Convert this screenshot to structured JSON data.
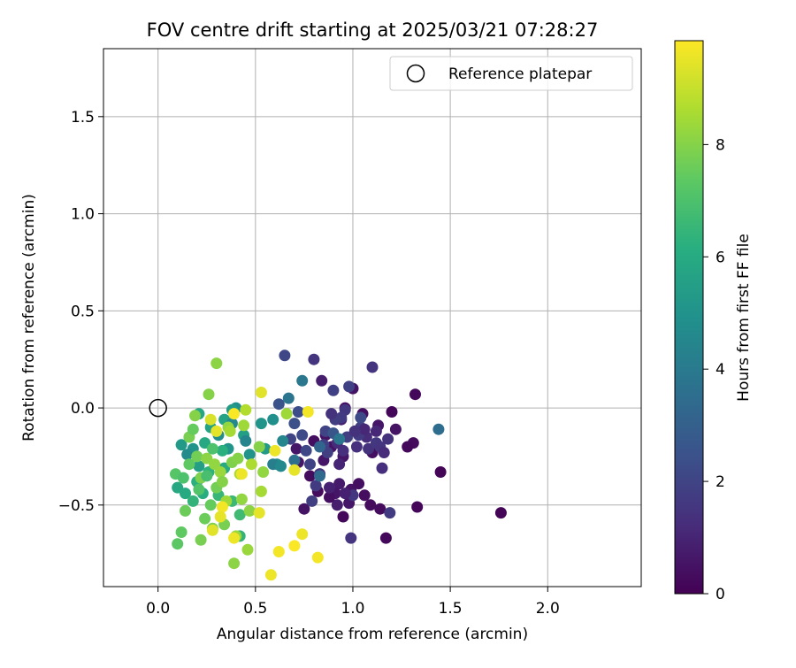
{
  "chart_data": {
    "type": "scatter",
    "title": "FOV centre drift starting at 2025/03/21 07:28:27",
    "xlabel": "Angular distance from reference (arcmin)",
    "ylabel": "Rotation from reference (arcmin)",
    "xlim": [
      -0.28,
      2.48
    ],
    "ylim": [
      -0.92,
      1.85
    ],
    "xticks": [
      "0.0",
      "0.5",
      "1.0",
      "1.5",
      "2.0"
    ],
    "yticks": [
      "−0.5",
      "0.0",
      "0.5",
      "1.0",
      "1.5"
    ],
    "xtick_values": [
      0.0,
      0.5,
      1.0,
      1.5,
      2.0
    ],
    "ytick_values": [
      -0.5,
      0.0,
      0.5,
      1.0,
      1.5
    ],
    "grid": true,
    "legend": {
      "placement": "top-right",
      "entries": [
        {
          "label": "Reference platepar",
          "marker": "open-circle",
          "x": 0.0,
          "y": 0.0
        }
      ]
    },
    "colorbar": {
      "label": "Hours from first FF file",
      "colormap": "viridis",
      "range": [
        0,
        9.85
      ],
      "ticks": [
        "0",
        "2",
        "4",
        "6",
        "8"
      ],
      "tick_values": [
        0,
        2,
        4,
        6,
        8
      ]
    },
    "series": [
      {
        "points": [
          [
            1.76,
            -0.54,
            0.1
          ],
          [
            1.45,
            -0.33,
            0.1
          ],
          [
            1.33,
            -0.51,
            0.15
          ],
          [
            1.32,
            0.07,
            0.2
          ],
          [
            1.31,
            -0.18,
            0.3
          ],
          [
            1.28,
            -0.2,
            0.2
          ],
          [
            1.2,
            -0.02,
            0.15
          ],
          [
            1.17,
            -0.67,
            0.2
          ],
          [
            1.14,
            -0.52,
            0.3
          ],
          [
            1.1,
            -0.23,
            0.4
          ],
          [
            1.09,
            -0.5,
            0.3
          ],
          [
            1.06,
            -0.45,
            0.35
          ],
          [
            1.05,
            -0.03,
            0.4
          ],
          [
            1.0,
            0.1,
            0.5
          ],
          [
            0.99,
            -0.42,
            0.5
          ],
          [
            0.98,
            -0.49,
            0.6
          ],
          [
            0.96,
            0.0,
            0.4
          ],
          [
            0.95,
            -0.25,
            0.6
          ],
          [
            0.94,
            -0.06,
            0.8
          ],
          [
            0.93,
            -0.39,
            0.7
          ],
          [
            0.92,
            -0.5,
            0.8
          ],
          [
            0.91,
            -0.44,
            0.6
          ],
          [
            0.89,
            -0.2,
            0.5
          ],
          [
            0.88,
            -0.46,
            0.4
          ],
          [
            0.86,
            -0.14,
            0.5
          ],
          [
            0.85,
            -0.27,
            0.6
          ],
          [
            0.84,
            0.14,
            0.8
          ],
          [
            0.83,
            -0.34,
            0.5
          ],
          [
            0.82,
            -0.43,
            0.3
          ],
          [
            0.8,
            -0.17,
            0.4
          ],
          [
            0.78,
            -0.35,
            0.3
          ],
          [
            0.75,
            -0.52,
            0.5
          ],
          [
            0.72,
            -0.28,
            0.6
          ],
          [
            0.71,
            -0.21,
            0.6
          ],
          [
            0.95,
            -0.56,
            0.2
          ],
          [
            1.03,
            -0.39,
            0.4
          ],
          [
            1.22,
            -0.11,
            0.5
          ],
          [
            1.13,
            -0.09,
            0.6
          ],
          [
            1.1,
            0.21,
            1.5
          ],
          [
            1.08,
            -0.21,
            1.4
          ],
          [
            1.07,
            -0.15,
            1.2
          ],
          [
            1.04,
            -0.1,
            1.8
          ],
          [
            1.03,
            -0.14,
            1.7
          ],
          [
            1.0,
            -0.45,
            1.6
          ],
          [
            0.99,
            -0.67,
            1.5
          ],
          [
            0.98,
            0.11,
            1.9
          ],
          [
            0.97,
            -0.15,
            1.8
          ],
          [
            0.96,
            -0.01,
            1.6
          ],
          [
            0.95,
            -0.22,
            1.3
          ],
          [
            0.94,
            -0.05,
            1.7
          ],
          [
            0.92,
            -0.18,
            1.2
          ],
          [
            0.91,
            -0.06,
            1.8
          ],
          [
            0.9,
            0.09,
            1.9
          ],
          [
            0.89,
            -0.03,
            1.4
          ],
          [
            0.87,
            -0.23,
            1.8
          ],
          [
            0.86,
            -0.12,
            2.0
          ],
          [
            0.85,
            -0.19,
            1.9
          ],
          [
            0.83,
            -0.34,
            1.5
          ],
          [
            0.81,
            -0.4,
            1.7
          ],
          [
            0.8,
            0.25,
            1.5
          ],
          [
            0.79,
            -0.48,
            1.8
          ],
          [
            0.78,
            -0.29,
            1.9
          ],
          [
            0.76,
            -0.22,
            2.1
          ],
          [
            0.74,
            -0.14,
            2.2
          ],
          [
            0.72,
            -0.02,
            2.3
          ],
          [
            0.7,
            -0.08,
            2.4
          ],
          [
            0.68,
            -0.16,
            2.0
          ],
          [
            0.65,
            0.27,
            2.1
          ],
          [
            0.62,
            0.02,
            2.5
          ],
          [
            1.12,
            -0.18,
            1.6
          ],
          [
            1.14,
            -0.2,
            1.5
          ],
          [
            1.15,
            -0.31,
            1.3
          ],
          [
            1.18,
            -0.16,
            1.4
          ],
          [
            1.19,
            -0.54,
            1.7
          ],
          [
            1.16,
            -0.23,
            1.2
          ],
          [
            1.06,
            -0.11,
            1.1
          ],
          [
            1.02,
            -0.2,
            1.3
          ],
          [
            1.01,
            -0.12,
            1.4
          ],
          [
            0.93,
            -0.29,
            1.0
          ],
          [
            0.88,
            -0.41,
            0.9
          ],
          [
            1.12,
            -0.12,
            1.1
          ],
          [
            0.96,
            -0.44,
            0.9
          ],
          [
            1.04,
            -0.05,
            2.2
          ],
          [
            0.9,
            -0.13,
            2.6
          ],
          [
            1.44,
            -0.11,
            3.5
          ],
          [
            0.93,
            -0.16,
            3.8
          ],
          [
            0.83,
            -0.2,
            3.2
          ],
          [
            0.83,
            -0.35,
            3.4
          ],
          [
            0.74,
            0.14,
            3.9
          ],
          [
            0.7,
            -0.27,
            3.6
          ],
          [
            0.67,
            0.05,
            3.8
          ],
          [
            0.64,
            -0.17,
            4.5
          ],
          [
            0.61,
            -0.29,
            4.8
          ],
          [
            0.59,
            -0.29,
            4.2
          ],
          [
            0.59,
            -0.06,
            4.9
          ],
          [
            0.63,
            -0.3,
            4.6
          ],
          [
            0.55,
            -0.21,
            5.3
          ],
          [
            0.53,
            -0.08,
            5.1
          ],
          [
            0.47,
            -0.24,
            5.0
          ],
          [
            0.44,
            -0.14,
            5.5
          ],
          [
            0.4,
            0.0,
            4.9
          ],
          [
            0.38,
            -0.01,
            5.4
          ],
          [
            0.34,
            -0.06,
            5.7
          ],
          [
            0.31,
            -0.14,
            4.8
          ],
          [
            0.27,
            -0.1,
            5.6
          ],
          [
            0.24,
            -0.18,
            5.9
          ],
          [
            0.21,
            -0.3,
            5.5
          ],
          [
            0.21,
            -0.03,
            5.8
          ],
          [
            0.18,
            -0.21,
            5.0
          ],
          [
            0.15,
            -0.24,
            4.7
          ],
          [
            0.12,
            -0.19,
            5.3
          ],
          [
            0.38,
            -0.08,
            4.6
          ],
          [
            0.36,
            -0.21,
            5.1
          ],
          [
            0.45,
            -0.17,
            4.4
          ],
          [
            0.1,
            -0.41,
            5.9
          ],
          [
            0.14,
            -0.44,
            6.0
          ],
          [
            0.2,
            -0.38,
            6.2
          ],
          [
            0.18,
            -0.48,
            6.4
          ],
          [
            0.23,
            -0.44,
            6.1
          ],
          [
            0.26,
            -0.33,
            6.3
          ],
          [
            0.31,
            -0.45,
            6.5
          ],
          [
            0.34,
            -0.31,
            6.0
          ],
          [
            0.38,
            -0.48,
            6.6
          ],
          [
            0.42,
            -0.55,
            6.7
          ],
          [
            0.42,
            -0.66,
            6.4
          ],
          [
            0.33,
            -0.22,
            6.2
          ],
          [
            0.09,
            -0.34,
            7.2
          ],
          [
            0.1,
            -0.7,
            7.3
          ],
          [
            0.12,
            -0.64,
            7.4
          ],
          [
            0.14,
            -0.53,
            7.6
          ],
          [
            0.16,
            -0.15,
            7.8
          ],
          [
            0.18,
            -0.11,
            7.5
          ],
          [
            0.19,
            -0.04,
            8.0
          ],
          [
            0.2,
            -0.25,
            7.7
          ],
          [
            0.22,
            -0.36,
            7.9
          ],
          [
            0.22,
            -0.68,
            7.8
          ],
          [
            0.24,
            -0.57,
            7.6
          ],
          [
            0.25,
            -0.26,
            8.1
          ],
          [
            0.26,
            0.07,
            8.0
          ],
          [
            0.27,
            -0.5,
            7.5
          ],
          [
            0.28,
            -0.62,
            7.9
          ],
          [
            0.29,
            -0.29,
            8.2
          ],
          [
            0.3,
            0.23,
            8.1
          ],
          [
            0.3,
            -0.41,
            7.7
          ],
          [
            0.32,
            -0.33,
            8.3
          ],
          [
            0.33,
            -0.38,
            8.0
          ],
          [
            0.34,
            -0.6,
            7.8
          ],
          [
            0.35,
            -0.48,
            8.4
          ],
          [
            0.36,
            -0.1,
            8.2
          ],
          [
            0.37,
            -0.12,
            8.5
          ],
          [
            0.38,
            -0.28,
            7.9
          ],
          [
            0.39,
            -0.8,
            8.1
          ],
          [
            0.4,
            -0.66,
            8.3
          ],
          [
            0.41,
            -0.26,
            8.0
          ],
          [
            0.42,
            -0.34,
            8.6
          ],
          [
            0.43,
            -0.47,
            8.2
          ],
          [
            0.44,
            -0.09,
            8.4
          ],
          [
            0.45,
            -0.01,
            8.7
          ],
          [
            0.46,
            -0.73,
            8.3
          ],
          [
            0.47,
            -0.53,
            8.1
          ],
          [
            0.48,
            -0.29,
            8.6
          ],
          [
            0.52,
            -0.2,
            8.0
          ],
          [
            0.53,
            -0.43,
            8.5
          ],
          [
            0.54,
            -0.33,
            8.2
          ],
          [
            0.66,
            -0.03,
            8.4
          ],
          [
            0.16,
            -0.29,
            7.4
          ],
          [
            0.21,
            -0.42,
            7.1
          ],
          [
            0.28,
            -0.21,
            7.0
          ],
          [
            0.25,
            -0.35,
            6.9
          ],
          [
            0.13,
            -0.36,
            7.0
          ],
          [
            0.58,
            -0.86,
            9.6
          ],
          [
            0.62,
            -0.74,
            9.7
          ],
          [
            0.7,
            -0.71,
            9.8
          ],
          [
            0.74,
            -0.65,
            9.6
          ],
          [
            0.82,
            -0.77,
            9.7
          ],
          [
            0.7,
            -0.32,
            9.5
          ],
          [
            0.53,
            0.08,
            9.4
          ],
          [
            0.6,
            -0.22,
            9.6
          ],
          [
            0.77,
            -0.02,
            9.7
          ],
          [
            0.52,
            -0.54,
            9.5
          ],
          [
            0.43,
            -0.34,
            9.6
          ],
          [
            0.39,
            -0.03,
            9.8
          ],
          [
            0.33,
            -0.51,
            9.7
          ],
          [
            0.32,
            -0.56,
            9.5
          ],
          [
            0.28,
            -0.63,
            9.4
          ],
          [
            0.39,
            -0.67,
            9.6
          ],
          [
            0.27,
            -0.06,
            9.3
          ],
          [
            0.3,
            -0.12,
            9.5
          ]
        ]
      }
    ]
  }
}
